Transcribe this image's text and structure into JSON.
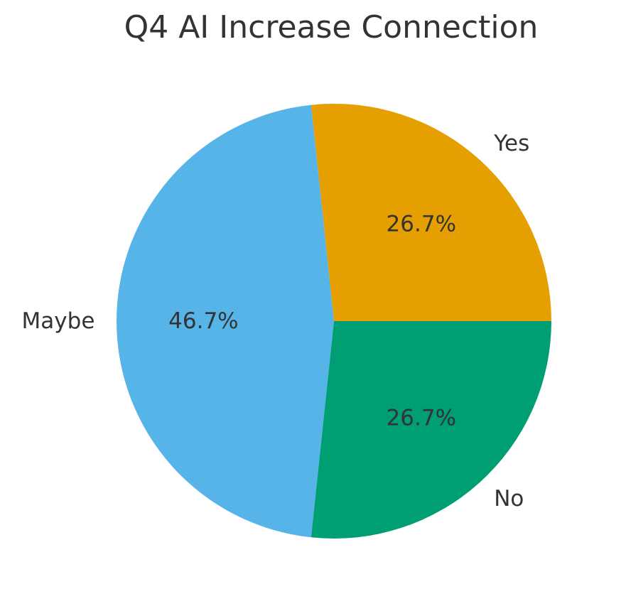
{
  "page": {
    "background_color": "#ffffff",
    "text_color": "#333333"
  },
  "chart_data": {
    "type": "pie",
    "title": "Q4 AI Increase Connection",
    "slices": [
      {
        "label": "Yes",
        "value": 26.7,
        "pct_label": "26.7%",
        "color": "#E69F00"
      },
      {
        "label": "Maybe",
        "value": 46.7,
        "pct_label": "46.7%",
        "color": "#56B4E9"
      },
      {
        "label": "No",
        "value": 26.7,
        "pct_label": "26.7%",
        "color": "#009E73"
      }
    ],
    "start_angle_deg": 0,
    "direction": "counterclockwise",
    "label_radius_ratio": 1.1,
    "pct_radius_ratio": 0.6,
    "legend": "none"
  }
}
